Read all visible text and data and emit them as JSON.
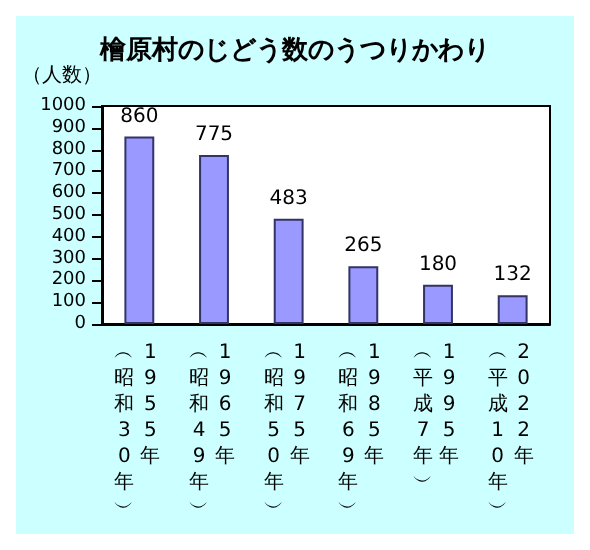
{
  "chart_data": {
    "type": "bar",
    "title": "檜原村のじどう数のうつりかわり",
    "ylabel": "（人数）",
    "categories": [
      "︵昭和30年︶\n1955年",
      "︵昭和49年︶\n1965年",
      "︵昭和50年︶\n1975年",
      "︵昭和69年︶\n1985年",
      "︵平成7年︶\n1995年",
      "︵平成10年︶\n2022年"
    ],
    "values": [
      860,
      775,
      483,
      265,
      180,
      132
    ],
    "color": "#9999ff",
    "ylim": [
      0,
      1000
    ],
    "yticks": [
      0,
      100,
      200,
      300,
      400,
      500,
      600,
      700,
      800,
      900,
      1000
    ],
    "grid": false,
    "data_labels": true
  }
}
